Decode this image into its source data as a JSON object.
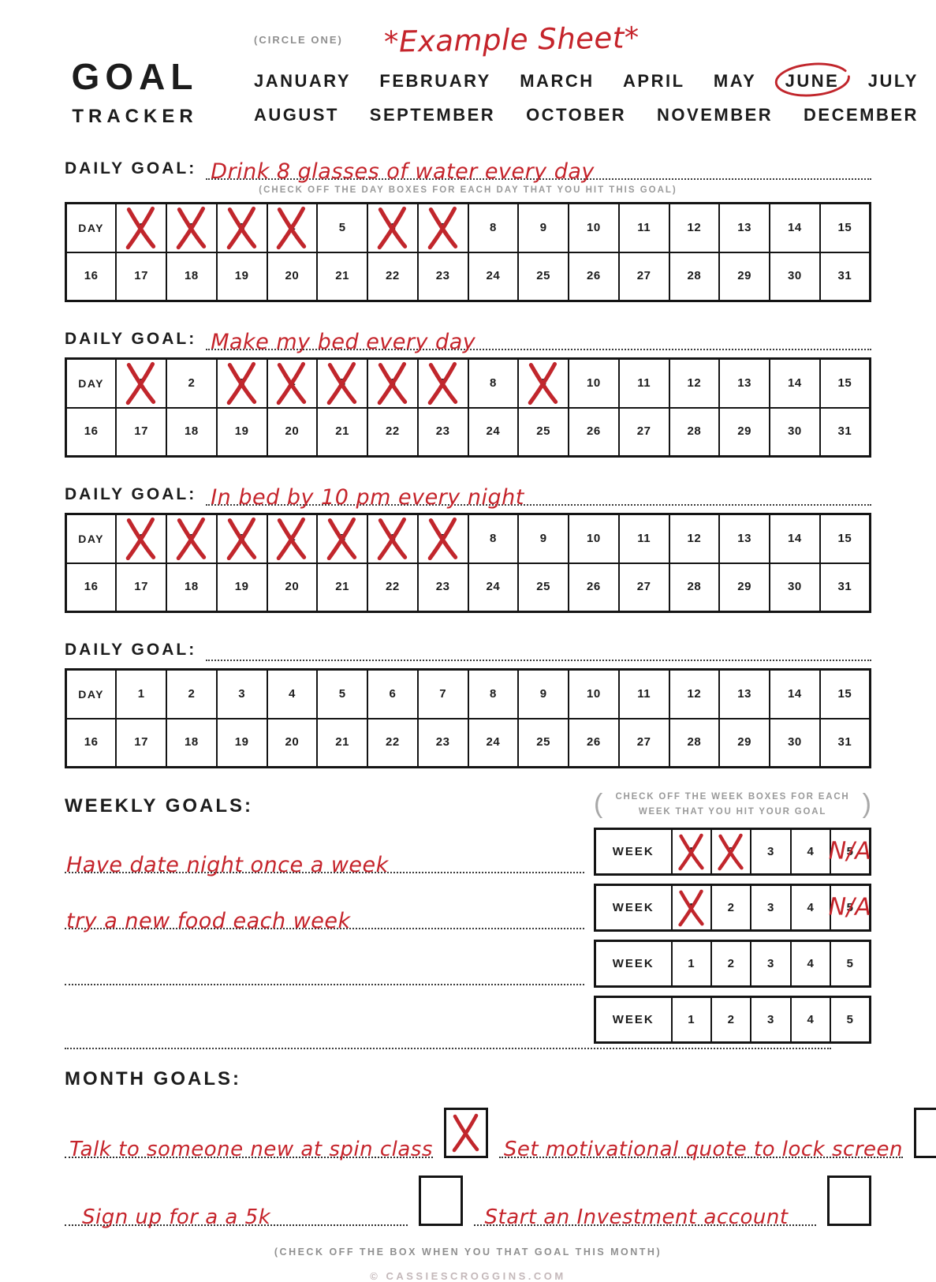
{
  "header": {
    "title_line1": "GOAL",
    "title_line2": "TRACKER",
    "circle_one_label": "(CIRCLE ONE)",
    "example_note": "*Example Sheet*",
    "months_row1": [
      "JANUARY",
      "FEBRUARY",
      "MARCH",
      "APRIL",
      "MAY",
      "JUNE",
      "JULY"
    ],
    "months_row2": [
      "AUGUST",
      "SEPTEMBER",
      "OCTOBER",
      "NOVEMBER",
      "DECEMBER"
    ],
    "circled_month": "JUNE"
  },
  "daily": {
    "label": "DAILY GOAL:",
    "caption": "(CHECK OFF THE DAY BOXES FOR EACH DAY THAT YOU HIT THIS GOAL)",
    "day_header": "DAY",
    "days_row1": [
      1,
      2,
      3,
      4,
      5,
      6,
      7,
      8,
      9,
      10,
      11,
      12,
      13,
      14,
      15
    ],
    "days_row2": [
      16,
      17,
      18,
      19,
      20,
      21,
      22,
      23,
      24,
      25,
      26,
      27,
      28,
      29,
      30,
      31
    ],
    "goals": [
      {
        "text": "Drink 8 glasses of water every day",
        "checked_days": [
          1,
          2,
          3,
          4,
          6,
          7
        ]
      },
      {
        "text": "Make my bed every day",
        "checked_days": [
          1,
          3,
          4,
          5,
          6,
          7,
          9
        ]
      },
      {
        "text": "In bed by 10 pm every night",
        "checked_days": [
          1,
          2,
          3,
          4,
          5,
          6,
          7
        ]
      },
      {
        "text": "",
        "checked_days": []
      }
    ]
  },
  "weekly": {
    "heading": "WEEKLY GOALS:",
    "instruction": "CHECK OFF THE WEEK BOXES FOR EACH WEEK THAT YOU HIT YOUR GOAL",
    "paren_open": "(",
    "paren_close": ")",
    "week_label": "WEEK",
    "week_numbers": [
      1,
      2,
      3,
      4,
      5
    ],
    "na_text": "N/A",
    "goals": [
      {
        "text": "Have date night once a week",
        "checked_weeks": [
          1,
          2
        ],
        "na_weeks": [
          5
        ]
      },
      {
        "text": "try a new food each week",
        "checked_weeks": [
          1
        ],
        "na_weeks": [
          5
        ]
      },
      {
        "text": "",
        "checked_weeks": [],
        "na_weeks": []
      },
      {
        "text": "",
        "checked_weeks": [],
        "na_weeks": []
      }
    ]
  },
  "monthly": {
    "heading": "MONTH GOALS:",
    "caption": "(CHECK OFF THE BOX WHEN YOU THAT GOAL THIS MONTH)",
    "goals": [
      {
        "text": "Talk to someone new at spin class",
        "checked": true
      },
      {
        "text": "Set motivational quote to lock screen",
        "checked": false
      },
      {
        "text": "Sign up for a a 5k",
        "checked": false
      },
      {
        "text": "Start an Investment account",
        "checked": false
      }
    ]
  },
  "footer": {
    "credit": "© CASSIESCROGGINS.COM"
  },
  "colors": {
    "accent_red": "#c5242b",
    "ink": "#1c1c1c",
    "muted_gray": "#9a9a9a",
    "credit_gray": "#c4b8ba"
  }
}
